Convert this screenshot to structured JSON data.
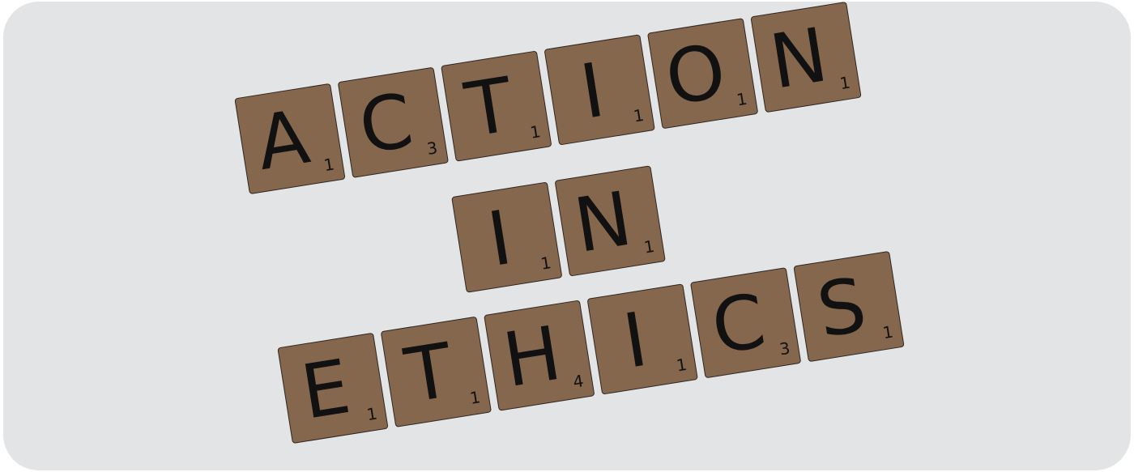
{
  "words": [
    {
      "tiles": [
        {
          "letter": "A",
          "score": "1"
        },
        {
          "letter": "C",
          "score": "3"
        },
        {
          "letter": "T",
          "score": "1"
        },
        {
          "letter": "I",
          "score": "1"
        },
        {
          "letter": "O",
          "score": "1"
        },
        {
          "letter": "N",
          "score": "1"
        }
      ]
    },
    {
      "tiles": [
        {
          "letter": "I",
          "score": "1"
        },
        {
          "letter": "N",
          "score": "1"
        }
      ]
    },
    {
      "tiles": [
        {
          "letter": "E",
          "score": "1"
        },
        {
          "letter": "T",
          "score": "1"
        },
        {
          "letter": "H",
          "score": "4"
        },
        {
          "letter": "I",
          "score": "1"
        },
        {
          "letter": "C",
          "score": "3"
        },
        {
          "letter": "S",
          "score": "1"
        }
      ]
    }
  ],
  "colors": {
    "background": "#e3e4e6",
    "tile": "#85674d",
    "tile_border": "#2e2520",
    "text": "#111111"
  }
}
